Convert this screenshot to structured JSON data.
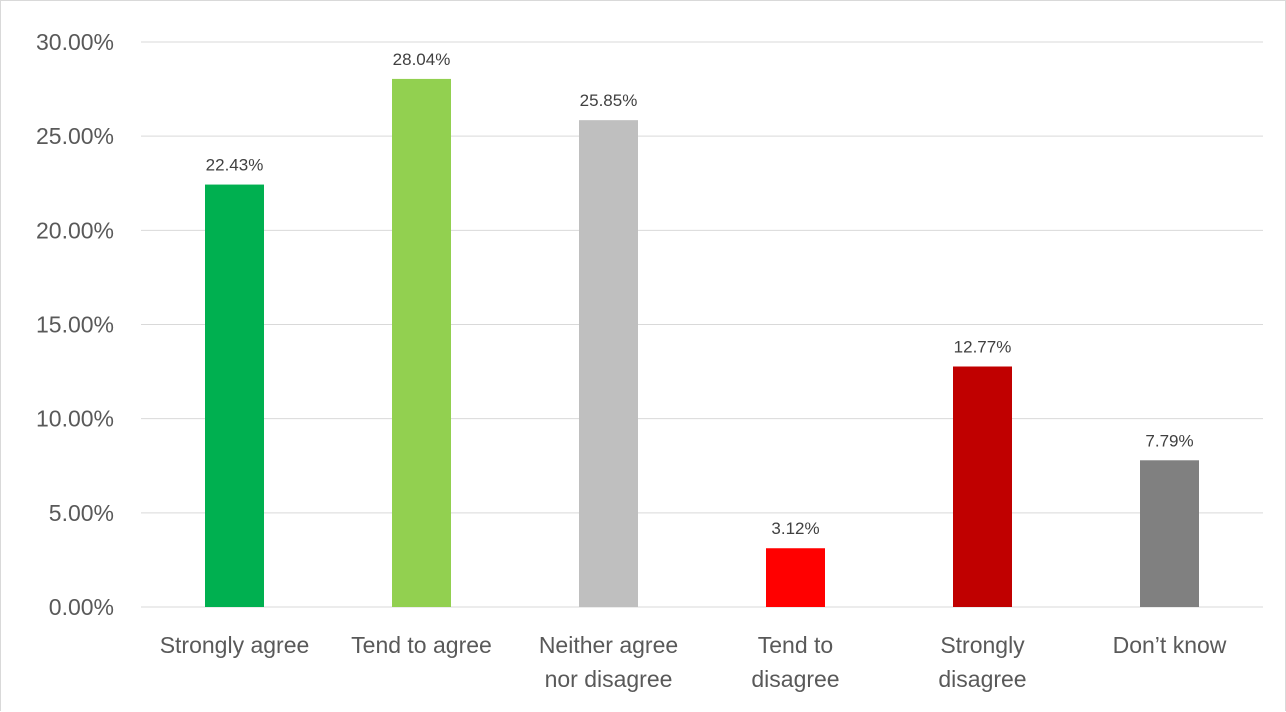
{
  "chart_data": {
    "type": "bar",
    "title": "",
    "xlabel": "",
    "ylabel": "",
    "categories": [
      [
        "Strongly agree"
      ],
      [
        "Tend to agree"
      ],
      [
        "Neither agree",
        "nor disagree"
      ],
      [
        "Tend to",
        "disagree"
      ],
      [
        "Strongly",
        "disagree"
      ],
      [
        "Don’t know"
      ]
    ],
    "values": [
      22.43,
      28.04,
      25.85,
      3.12,
      12.77,
      7.79
    ],
    "data_labels": [
      "22.43%",
      "28.04%",
      "25.85%",
      "3.12%",
      "12.77%",
      "7.79%"
    ],
    "bar_colors": [
      "#00b050",
      "#92d050",
      "#bfbfbf",
      "#ff0000",
      "#c00000",
      "#808080"
    ],
    "ylim": [
      0,
      30
    ],
    "yticks": [
      0,
      5,
      10,
      15,
      20,
      25,
      30
    ],
    "ytick_labels": [
      "0.00%",
      "5.00%",
      "10.00%",
      "15.00%",
      "20.00%",
      "25.00%",
      "30.00%"
    ],
    "grid": true,
    "gridline_color": "#d9d9d9",
    "legend": "none"
  }
}
